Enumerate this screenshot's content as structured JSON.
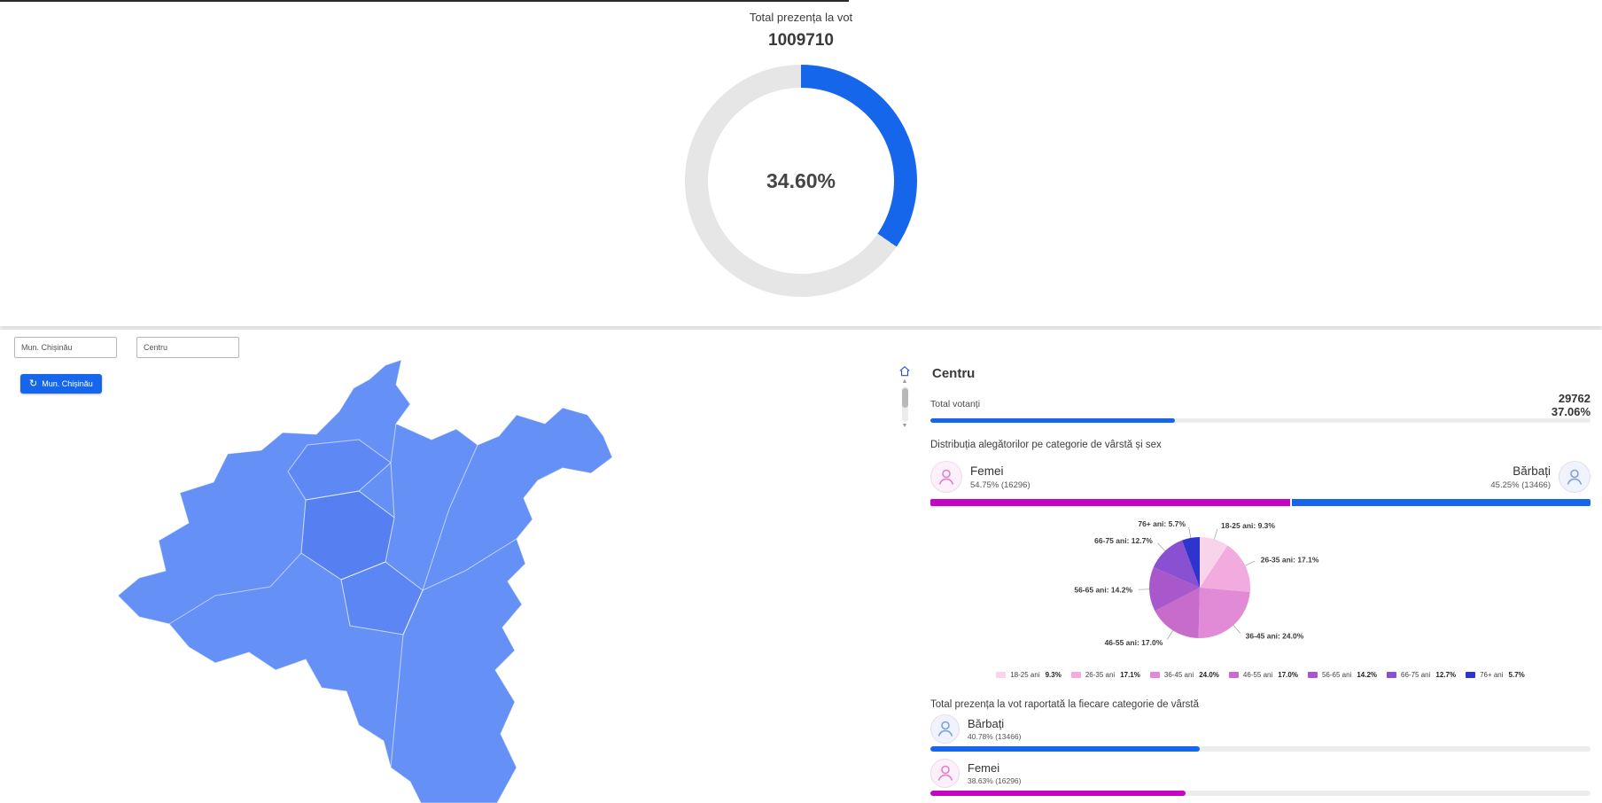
{
  "colors": {
    "accent-blue": "#1666eb",
    "accent-magenta": "#c405c4",
    "map-blue": "#6590f5",
    "donut-track": "#e6e6e6"
  },
  "top": {
    "title": "Total prezența la vot",
    "total": "1009710",
    "turnout_percent": "34.60%"
  },
  "filters": {
    "district_value": "Mun. Chișinău",
    "locality_value": "Centru",
    "reset_button_label": "Mun. Chișinău"
  },
  "panel": {
    "title": "Centru",
    "total_label": "Total votanți",
    "total_value": "29762",
    "total_percent": "37.06%",
    "distribution_title": "Distribuția alegătorilor pe categorie de vârstă și sex",
    "female_label": "Femei",
    "female_stat": "54.75% (16296)",
    "male_label": "Bărbați",
    "male_stat": "45.25% (13466)",
    "age_turnout_title": "Total prezența la vot raportată la fiecare categorie de vârstă",
    "male_turnout_label": "Bărbați",
    "male_turnout_stat": "40.78% (13466)",
    "female_turnout_label": "Femei",
    "female_turnout_stat": "38.63% (16296)"
  },
  "chart_data": [
    {
      "type": "donut",
      "title": "Total prezența la vot",
      "total_votes": 1009710,
      "value": 34.6,
      "center_label": "34.60%",
      "color": "#1666eb",
      "track_color": "#e6e6e6"
    },
    {
      "type": "bar",
      "subtype": "progress",
      "label": "Total votanți (Centru)",
      "value": 37.06,
      "max": 100,
      "color": "#1666eb"
    },
    {
      "type": "bar",
      "subtype": "stacked",
      "title": "Distribuția alegătorilor pe categorie de vârstă și sex",
      "series": [
        {
          "name": "Femei",
          "value": 54.75,
          "count": 16296,
          "color": "#c405c4"
        },
        {
          "name": "Bărbați",
          "value": 45.25,
          "count": 13466,
          "color": "#1666eb"
        }
      ]
    },
    {
      "type": "pie",
      "title": "Distribuția alegătorilor pe categorie de vârstă",
      "categories": [
        "18-25 ani",
        "26-35 ani",
        "36-45 ani",
        "46-55 ani",
        "56-65 ani",
        "66-75 ani",
        "76+ ani"
      ],
      "values": [
        9.3,
        17.1,
        24.0,
        17.0,
        14.2,
        12.7,
        5.7
      ],
      "colors": [
        "#f7d4e9",
        "#f2abdf",
        "#e18ad5",
        "#c76ccb",
        "#a958cb",
        "#8a50d2",
        "#2e35cf"
      ],
      "legend_position": "bottom"
    },
    {
      "type": "bar",
      "subtype": "progress",
      "label": "Bărbați",
      "value": 40.78,
      "count": 13466,
      "max": 100,
      "color": "#1666eb"
    },
    {
      "type": "bar",
      "subtype": "progress",
      "label": "Femei",
      "value": 38.63,
      "count": 16296,
      "max": 100,
      "color": "#c405c4"
    }
  ]
}
